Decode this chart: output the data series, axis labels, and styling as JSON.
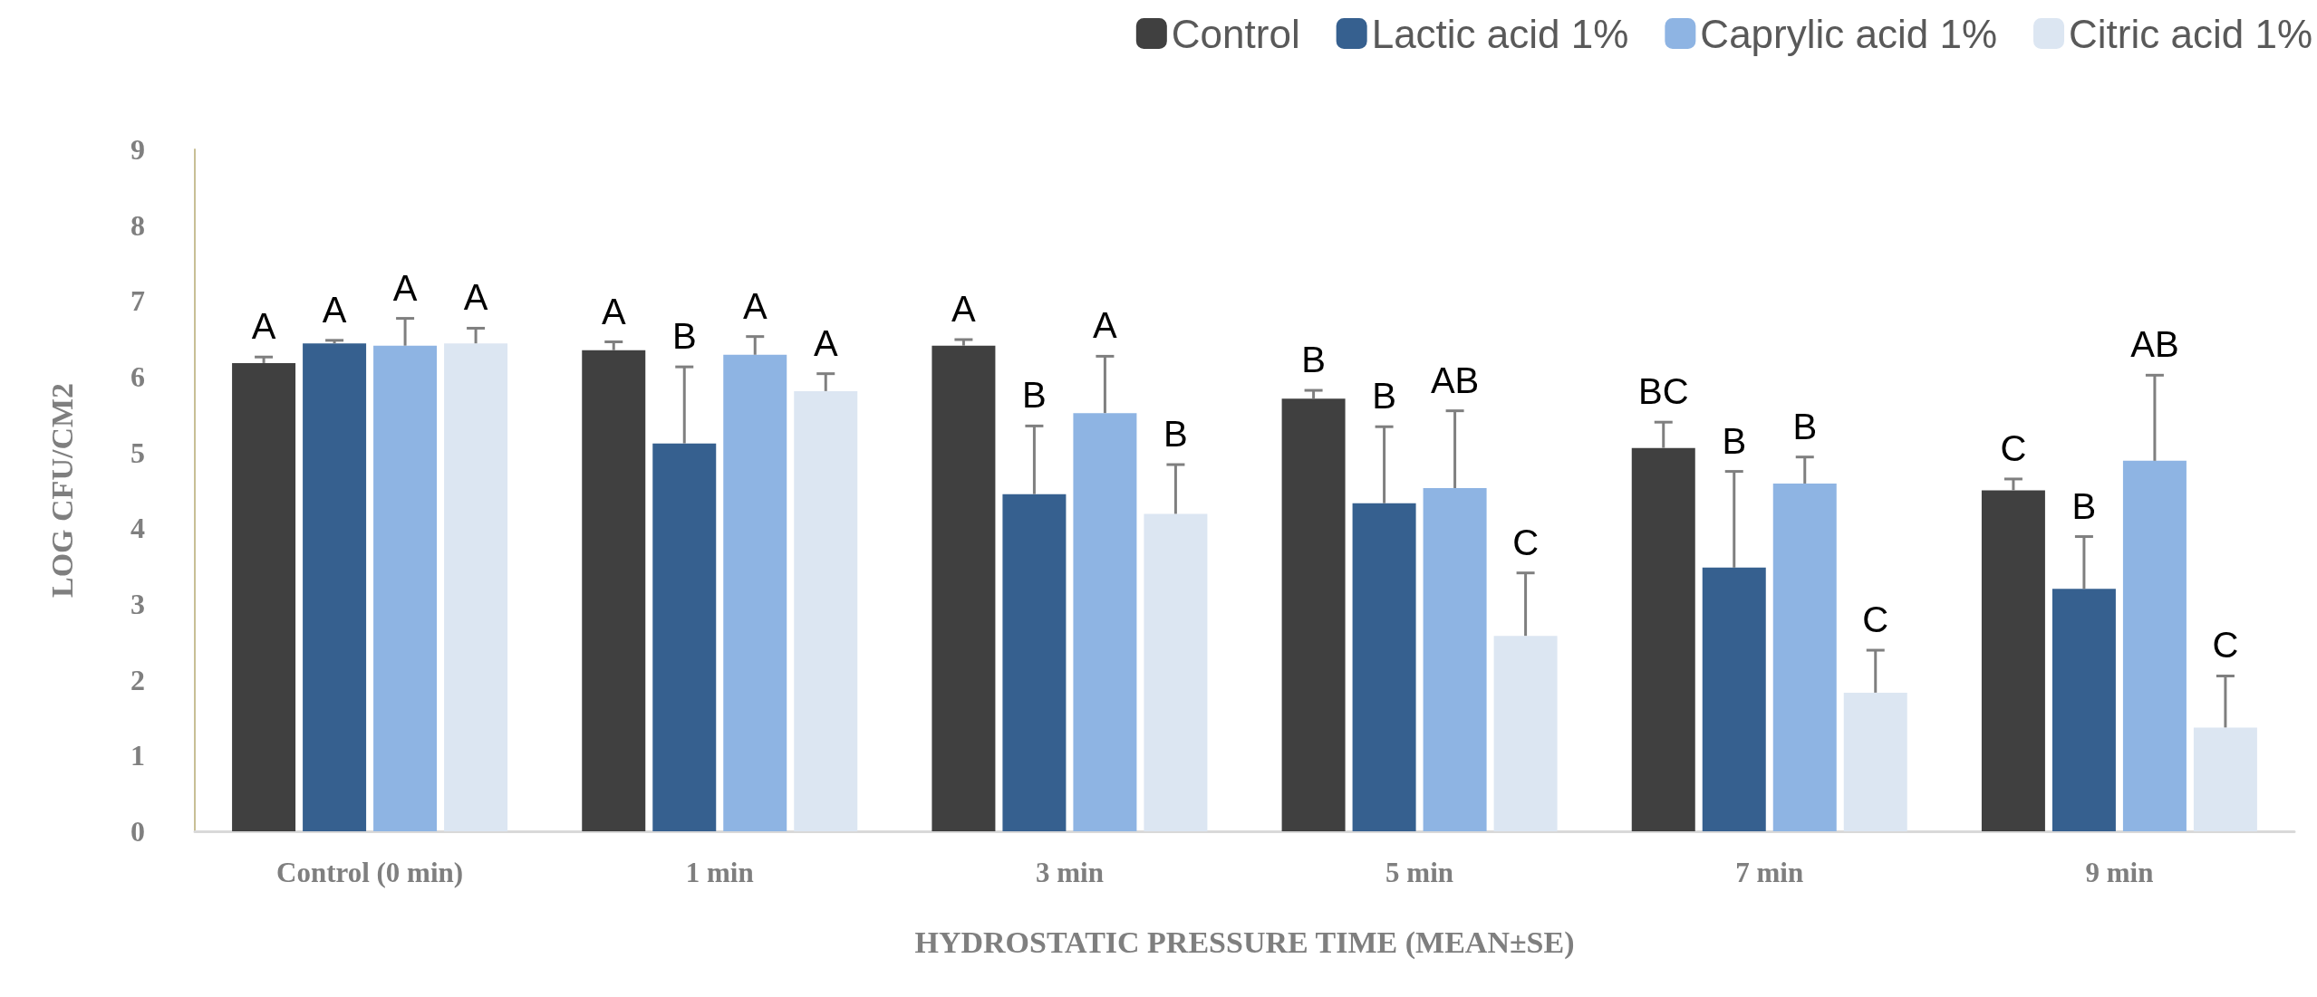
{
  "chart_data": {
    "type": "bar",
    "xlabel": "HYDROSTATIC PRESSURE TIME (MEAN±SE)",
    "ylabel": "LOG CFU/CM2",
    "categories": [
      "Control (0 min)",
      "1 min",
      "3 min",
      "5 min",
      "7 min",
      "9 min"
    ],
    "series": [
      {
        "name": "Control",
        "color": "#404040",
        "values": [
          6.18,
          6.35,
          6.41,
          5.71,
          5.06,
          4.5
        ],
        "errors": [
          [
            6.18,
            6.26
          ],
          [
            6.35,
            6.46
          ],
          [
            6.41,
            6.49
          ],
          [
            5.71,
            5.82
          ],
          [
            5.06,
            5.4
          ],
          [
            4.5,
            4.65
          ]
        ],
        "value_labels": [
          "A",
          "A",
          "A",
          "B",
          "BC",
          "C"
        ]
      },
      {
        "name": "Lactic acid 1%",
        "color": "#36608f",
        "values": [
          6.44,
          5.12,
          4.45,
          4.33,
          3.48,
          3.2
        ],
        "errors": [
          [
            6.44,
            6.48
          ],
          [
            5.12,
            6.13
          ],
          [
            4.45,
            5.35
          ],
          [
            4.33,
            5.34
          ],
          [
            3.48,
            4.75
          ],
          [
            3.2,
            3.89
          ]
        ],
        "value_labels": [
          "A",
          "B",
          "B",
          "B",
          "B",
          "B"
        ]
      },
      {
        "name": "Caprylic acid 1%",
        "color": "#8eb4e3",
        "values": [
          6.41,
          6.29,
          5.52,
          4.53,
          4.59,
          4.89
        ],
        "errors": [
          [
            6.41,
            6.77
          ],
          [
            6.29,
            6.53
          ],
          [
            5.52,
            6.27
          ],
          [
            4.53,
            5.55
          ],
          [
            4.59,
            4.94
          ],
          [
            4.89,
            6.02
          ]
        ],
        "value_labels": [
          "A",
          "A",
          "A",
          "AB",
          "B",
          "AB"
        ]
      },
      {
        "name": "Citric acid 1%",
        "color": "#dce6f2",
        "values": [
          6.44,
          5.81,
          4.19,
          2.58,
          1.83,
          1.37
        ],
        "errors": [
          [
            6.44,
            6.64
          ],
          [
            5.81,
            6.04
          ],
          [
            4.19,
            4.84
          ],
          [
            2.58,
            3.41
          ],
          [
            1.83,
            2.39
          ],
          [
            1.37,
            2.05
          ]
        ],
        "value_labels": [
          "A",
          "A",
          "B",
          "C",
          "C",
          "C"
        ]
      }
    ],
    "ylim": [
      0,
      9
    ],
    "yticks": [
      0,
      1,
      2,
      3,
      4,
      5,
      6,
      7,
      8,
      9
    ],
    "grid": false,
    "legend": "top right"
  }
}
